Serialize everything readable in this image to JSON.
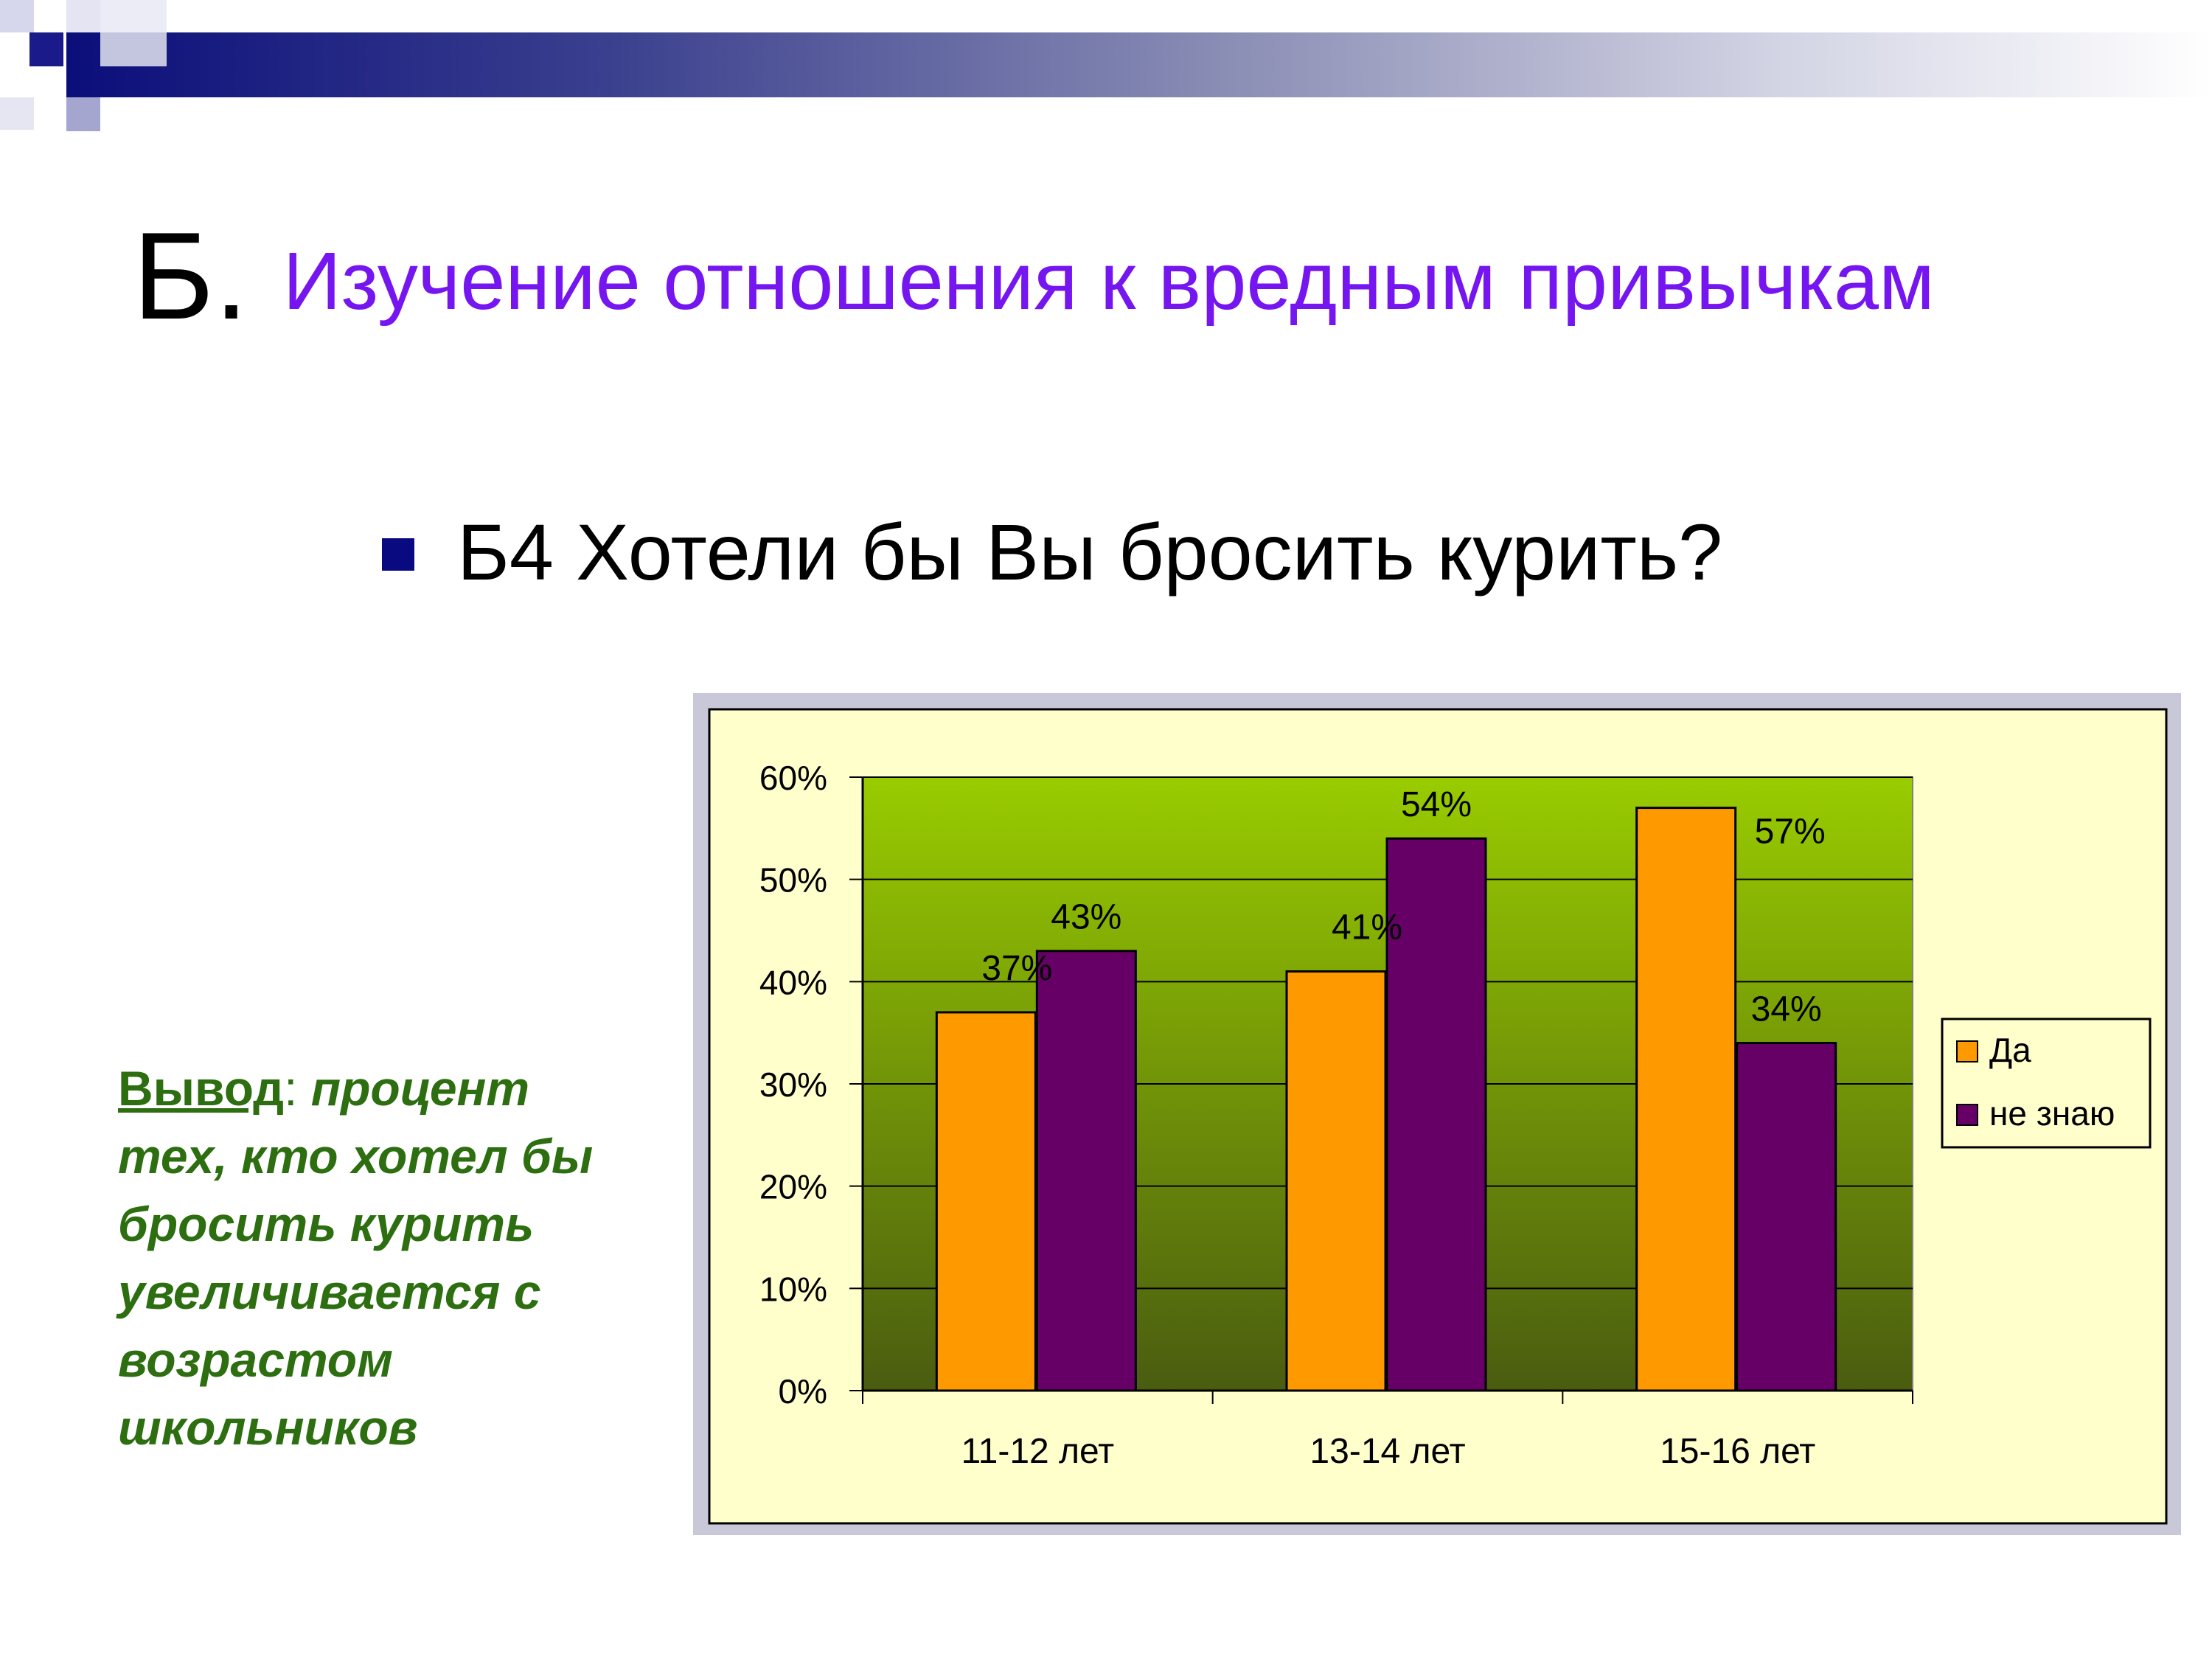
{
  "title": {
    "prefix": "Б.",
    "text": "Изучение отношения к вредным привычкам"
  },
  "bullet": {
    "text": "Б4 Хотели бы Вы бросить курить?"
  },
  "conclusion": {
    "label": "Вывод",
    "colon": ":",
    "text": "процент тех, кто хотел бы бросить курить увеличивается с возрастом школьников"
  },
  "colors": {
    "title_accent": "#7515f0",
    "conclusion": "#2c6e10",
    "series_da": "#ff9900",
    "series_ne_znayu": "#660066",
    "chart_background": "#ffffcc",
    "plot_top": "#99cc00",
    "plot_bottom": "#4a5c10"
  },
  "chart_data": {
    "type": "bar",
    "categories": [
      "11-12 лет",
      "13-14 лет",
      "15-16 лет"
    ],
    "series": [
      {
        "name": "Да",
        "values": [
          37,
          41,
          57
        ],
        "labels": [
          "37%",
          "41%",
          "57%"
        ]
      },
      {
        "name": "не знаю",
        "values": [
          43,
          54,
          34
        ],
        "labels": [
          "43%",
          "54%",
          "34%"
        ]
      }
    ],
    "ylim": [
      0,
      60
    ],
    "yticks": [
      0,
      10,
      20,
      30,
      40,
      50,
      60
    ],
    "ytick_labels": [
      "0%",
      "10%",
      "20%",
      "30%",
      "40%",
      "50%",
      "60%"
    ],
    "grid": true,
    "legend": "right"
  }
}
